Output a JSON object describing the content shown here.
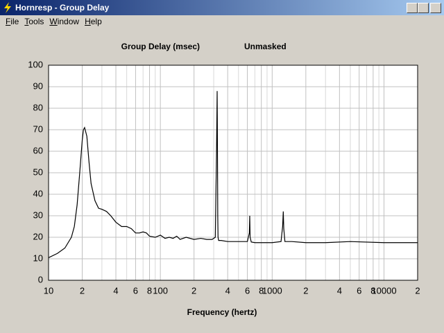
{
  "window": {
    "title": "Hornresp - Group Delay",
    "menu": [
      "File",
      "Tools",
      "Window",
      "Help"
    ]
  },
  "chart_data": {
    "type": "line",
    "title": "Group Delay (msec)",
    "subtitle": "Unmasked",
    "x_label": "Frequency (hertz)",
    "x_scale": "log",
    "xlim": [
      10,
      20000
    ],
    "ylim": [
      0,
      100
    ],
    "xticks": [
      10,
      {
        "value": 20,
        "label": "2"
      },
      {
        "value": 40,
        "label": "4"
      },
      {
        "value": 60,
        "label": "6"
      },
      {
        "value": 80,
        "label": "8"
      },
      100,
      {
        "value": 200,
        "label": "2"
      },
      {
        "value": 400,
        "label": "4"
      },
      {
        "value": 600,
        "label": "6"
      },
      {
        "value": 800,
        "label": "8"
      },
      1000,
      {
        "value": 2000,
        "label": "2"
      },
      {
        "value": 4000,
        "label": "4"
      },
      {
        "value": 6000,
        "label": "6"
      },
      {
        "value": 8000,
        "label": "8"
      },
      10000,
      {
        "value": 20000,
        "label": "2"
      }
    ],
    "xminorticks": [
      30,
      50,
      70,
      90,
      300,
      500,
      700,
      900,
      3000,
      5000,
      7000,
      9000
    ],
    "yticks": [
      0,
      10,
      20,
      30,
      40,
      50,
      60,
      70,
      80,
      90,
      100
    ],
    "grid": true,
    "color": "#000000",
    "x": [
      10,
      12,
      14,
      16,
      17,
      18,
      19,
      20,
      20.5,
      21,
      22,
      23,
      24,
      26,
      28,
      30,
      33,
      36,
      40,
      45,
      50,
      55,
      60,
      65,
      70,
      75,
      80,
      90,
      100,
      110,
      120,
      130,
      140,
      150,
      170,
      200,
      230,
      260,
      290,
      310,
      318,
      322,
      324,
      326,
      328,
      332,
      350,
      400,
      500,
      600,
      625,
      630,
      635,
      650,
      700,
      1000,
      1200,
      1240,
      1257,
      1270,
      1300,
      1500,
      2000,
      3000,
      5000,
      10000,
      20000
    ],
    "values": [
      10.5,
      12.5,
      15,
      20,
      25,
      35,
      50,
      65,
      70,
      71,
      67,
      55,
      45,
      37,
      33.5,
      33,
      32,
      30,
      27,
      25,
      25,
      24,
      22,
      22,
      22.5,
      22,
      20.5,
      20,
      21,
      19.5,
      20,
      19.5,
      20.5,
      19,
      20,
      19,
      19.5,
      19,
      19,
      20,
      60,
      88,
      62,
      30,
      20,
      18.5,
      18.5,
      18,
      18,
      18,
      22,
      30,
      20,
      17.8,
      17.5,
      17.5,
      18,
      25,
      32,
      24,
      18,
      18,
      17.5,
      17.5,
      18,
      17.5,
      17.5
    ]
  }
}
